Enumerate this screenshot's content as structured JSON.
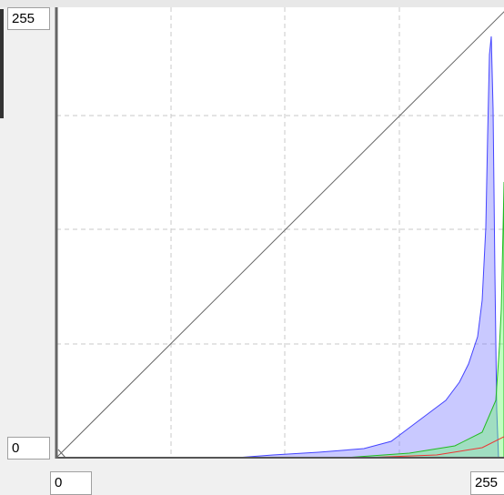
{
  "inputs": {
    "y_max": "255",
    "y_min": "0",
    "x_min": "0",
    "x_max": "255"
  }
}
